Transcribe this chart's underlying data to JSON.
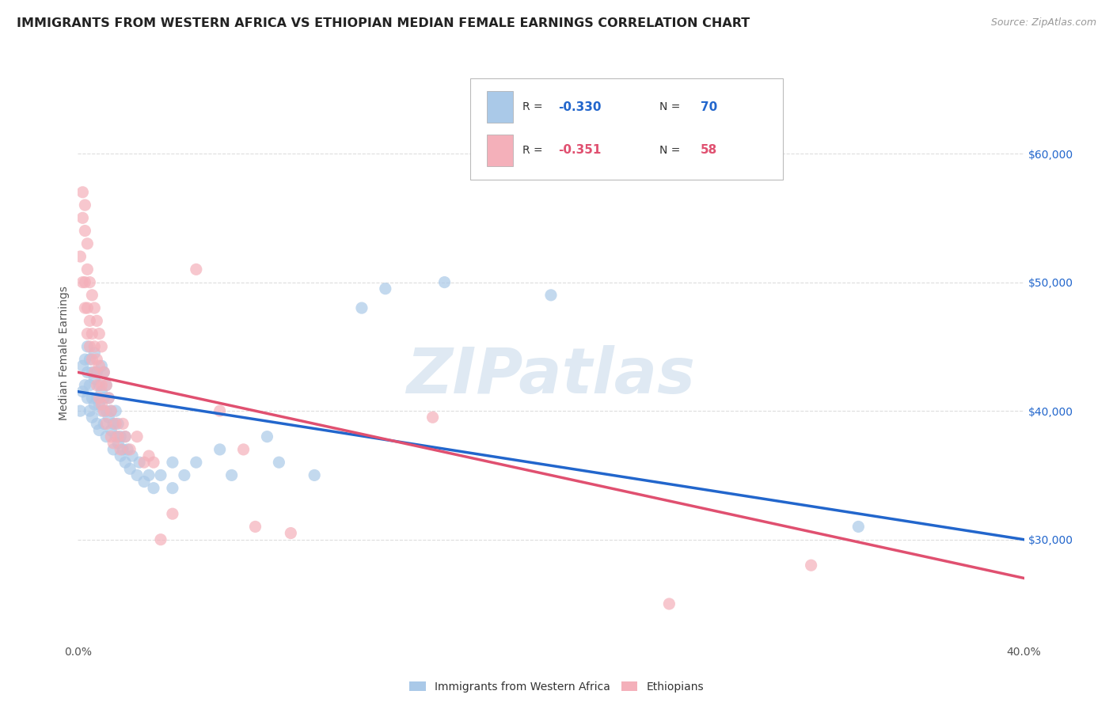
{
  "title": "IMMIGRANTS FROM WESTERN AFRICA VS ETHIOPIAN MEDIAN FEMALE EARNINGS CORRELATION CHART",
  "source": "Source: ZipAtlas.com",
  "ylabel": "Median Female Earnings",
  "xlim": [
    0.0,
    0.4
  ],
  "ylim": [
    22000,
    67000
  ],
  "yticks": [
    30000,
    40000,
    50000,
    60000
  ],
  "yticklabels": [
    "$30,000",
    "$40,000",
    "$50,000",
    "$60,000"
  ],
  "legend_label1": "Immigrants from Western Africa",
  "legend_label2": "Ethiopians",
  "blue_color": "#aac9e8",
  "pink_color": "#f4b0ba",
  "blue_line_color": "#2266cc",
  "pink_line_color": "#e05070",
  "watermark": "ZIPatlas",
  "blue_scatter": [
    [
      0.001,
      40000
    ],
    [
      0.002,
      41500
    ],
    [
      0.002,
      43500
    ],
    [
      0.003,
      42000
    ],
    [
      0.003,
      44000
    ],
    [
      0.004,
      41000
    ],
    [
      0.004,
      43000
    ],
    [
      0.004,
      45000
    ],
    [
      0.005,
      40000
    ],
    [
      0.005,
      42000
    ],
    [
      0.005,
      44000
    ],
    [
      0.006,
      39500
    ],
    [
      0.006,
      41000
    ],
    [
      0.006,
      43000
    ],
    [
      0.007,
      40500
    ],
    [
      0.007,
      42500
    ],
    [
      0.007,
      44500
    ],
    [
      0.008,
      39000
    ],
    [
      0.008,
      41000
    ],
    [
      0.008,
      43000
    ],
    [
      0.009,
      38500
    ],
    [
      0.009,
      40500
    ],
    [
      0.009,
      42000
    ],
    [
      0.01,
      40000
    ],
    [
      0.01,
      41500
    ],
    [
      0.01,
      43500
    ],
    [
      0.011,
      39000
    ],
    [
      0.011,
      41000
    ],
    [
      0.011,
      43000
    ],
    [
      0.012,
      38000
    ],
    [
      0.012,
      40000
    ],
    [
      0.012,
      42000
    ],
    [
      0.013,
      39500
    ],
    [
      0.013,
      41000
    ],
    [
      0.014,
      38500
    ],
    [
      0.014,
      40000
    ],
    [
      0.015,
      37000
    ],
    [
      0.015,
      39000
    ],
    [
      0.016,
      38000
    ],
    [
      0.016,
      40000
    ],
    [
      0.017,
      37500
    ],
    [
      0.017,
      39000
    ],
    [
      0.018,
      36500
    ],
    [
      0.018,
      38000
    ],
    [
      0.019,
      37000
    ],
    [
      0.02,
      36000
    ],
    [
      0.02,
      38000
    ],
    [
      0.021,
      37000
    ],
    [
      0.022,
      35500
    ],
    [
      0.023,
      36500
    ],
    [
      0.025,
      35000
    ],
    [
      0.026,
      36000
    ],
    [
      0.028,
      34500
    ],
    [
      0.03,
      35000
    ],
    [
      0.032,
      34000
    ],
    [
      0.035,
      35000
    ],
    [
      0.04,
      36000
    ],
    [
      0.04,
      34000
    ],
    [
      0.045,
      35000
    ],
    [
      0.05,
      36000
    ],
    [
      0.06,
      37000
    ],
    [
      0.065,
      35000
    ],
    [
      0.08,
      38000
    ],
    [
      0.085,
      36000
    ],
    [
      0.1,
      35000
    ],
    [
      0.12,
      48000
    ],
    [
      0.13,
      49500
    ],
    [
      0.155,
      50000
    ],
    [
      0.2,
      49000
    ],
    [
      0.33,
      31000
    ]
  ],
  "pink_scatter": [
    [
      0.001,
      52000
    ],
    [
      0.002,
      50000
    ],
    [
      0.002,
      55000
    ],
    [
      0.002,
      57000
    ],
    [
      0.003,
      48000
    ],
    [
      0.003,
      50000
    ],
    [
      0.003,
      54000
    ],
    [
      0.003,
      56000
    ],
    [
      0.004,
      46000
    ],
    [
      0.004,
      48000
    ],
    [
      0.004,
      51000
    ],
    [
      0.004,
      53000
    ],
    [
      0.005,
      45000
    ],
    [
      0.005,
      47000
    ],
    [
      0.005,
      50000
    ],
    [
      0.006,
      44000
    ],
    [
      0.006,
      46000
    ],
    [
      0.006,
      49000
    ],
    [
      0.007,
      43000
    ],
    [
      0.007,
      45000
    ],
    [
      0.007,
      48000
    ],
    [
      0.008,
      42000
    ],
    [
      0.008,
      44000
    ],
    [
      0.008,
      47000
    ],
    [
      0.009,
      41000
    ],
    [
      0.009,
      43500
    ],
    [
      0.009,
      46000
    ],
    [
      0.01,
      40500
    ],
    [
      0.01,
      42000
    ],
    [
      0.01,
      45000
    ],
    [
      0.011,
      40000
    ],
    [
      0.011,
      43000
    ],
    [
      0.012,
      39000
    ],
    [
      0.012,
      42000
    ],
    [
      0.013,
      41000
    ],
    [
      0.014,
      38000
    ],
    [
      0.014,
      40000
    ],
    [
      0.015,
      37500
    ],
    [
      0.016,
      39000
    ],
    [
      0.017,
      38000
    ],
    [
      0.018,
      37000
    ],
    [
      0.019,
      39000
    ],
    [
      0.02,
      38000
    ],
    [
      0.022,
      37000
    ],
    [
      0.025,
      38000
    ],
    [
      0.028,
      36000
    ],
    [
      0.03,
      36500
    ],
    [
      0.032,
      36000
    ],
    [
      0.035,
      30000
    ],
    [
      0.04,
      32000
    ],
    [
      0.05,
      51000
    ],
    [
      0.06,
      40000
    ],
    [
      0.07,
      37000
    ],
    [
      0.075,
      31000
    ],
    [
      0.09,
      30500
    ],
    [
      0.15,
      39500
    ],
    [
      0.25,
      25000
    ],
    [
      0.31,
      28000
    ]
  ],
  "blue_line_x": [
    0.0,
    0.4
  ],
  "blue_line_y": [
    41500,
    30000
  ],
  "pink_line_x": [
    0.0,
    0.4
  ],
  "pink_line_y": [
    43000,
    27000
  ],
  "background_color": "#ffffff",
  "grid_color": "#dddddd",
  "title_fontsize": 11.5,
  "axis_label_fontsize": 10,
  "tick_fontsize": 10,
  "source_fontsize": 9,
  "watermark_color": "#c5d8ea",
  "watermark_fontsize": 58,
  "r1_color": "#2266cc",
  "r2_color": "#e05070",
  "n1_color": "#2266cc",
  "n2_color": "#e05070"
}
